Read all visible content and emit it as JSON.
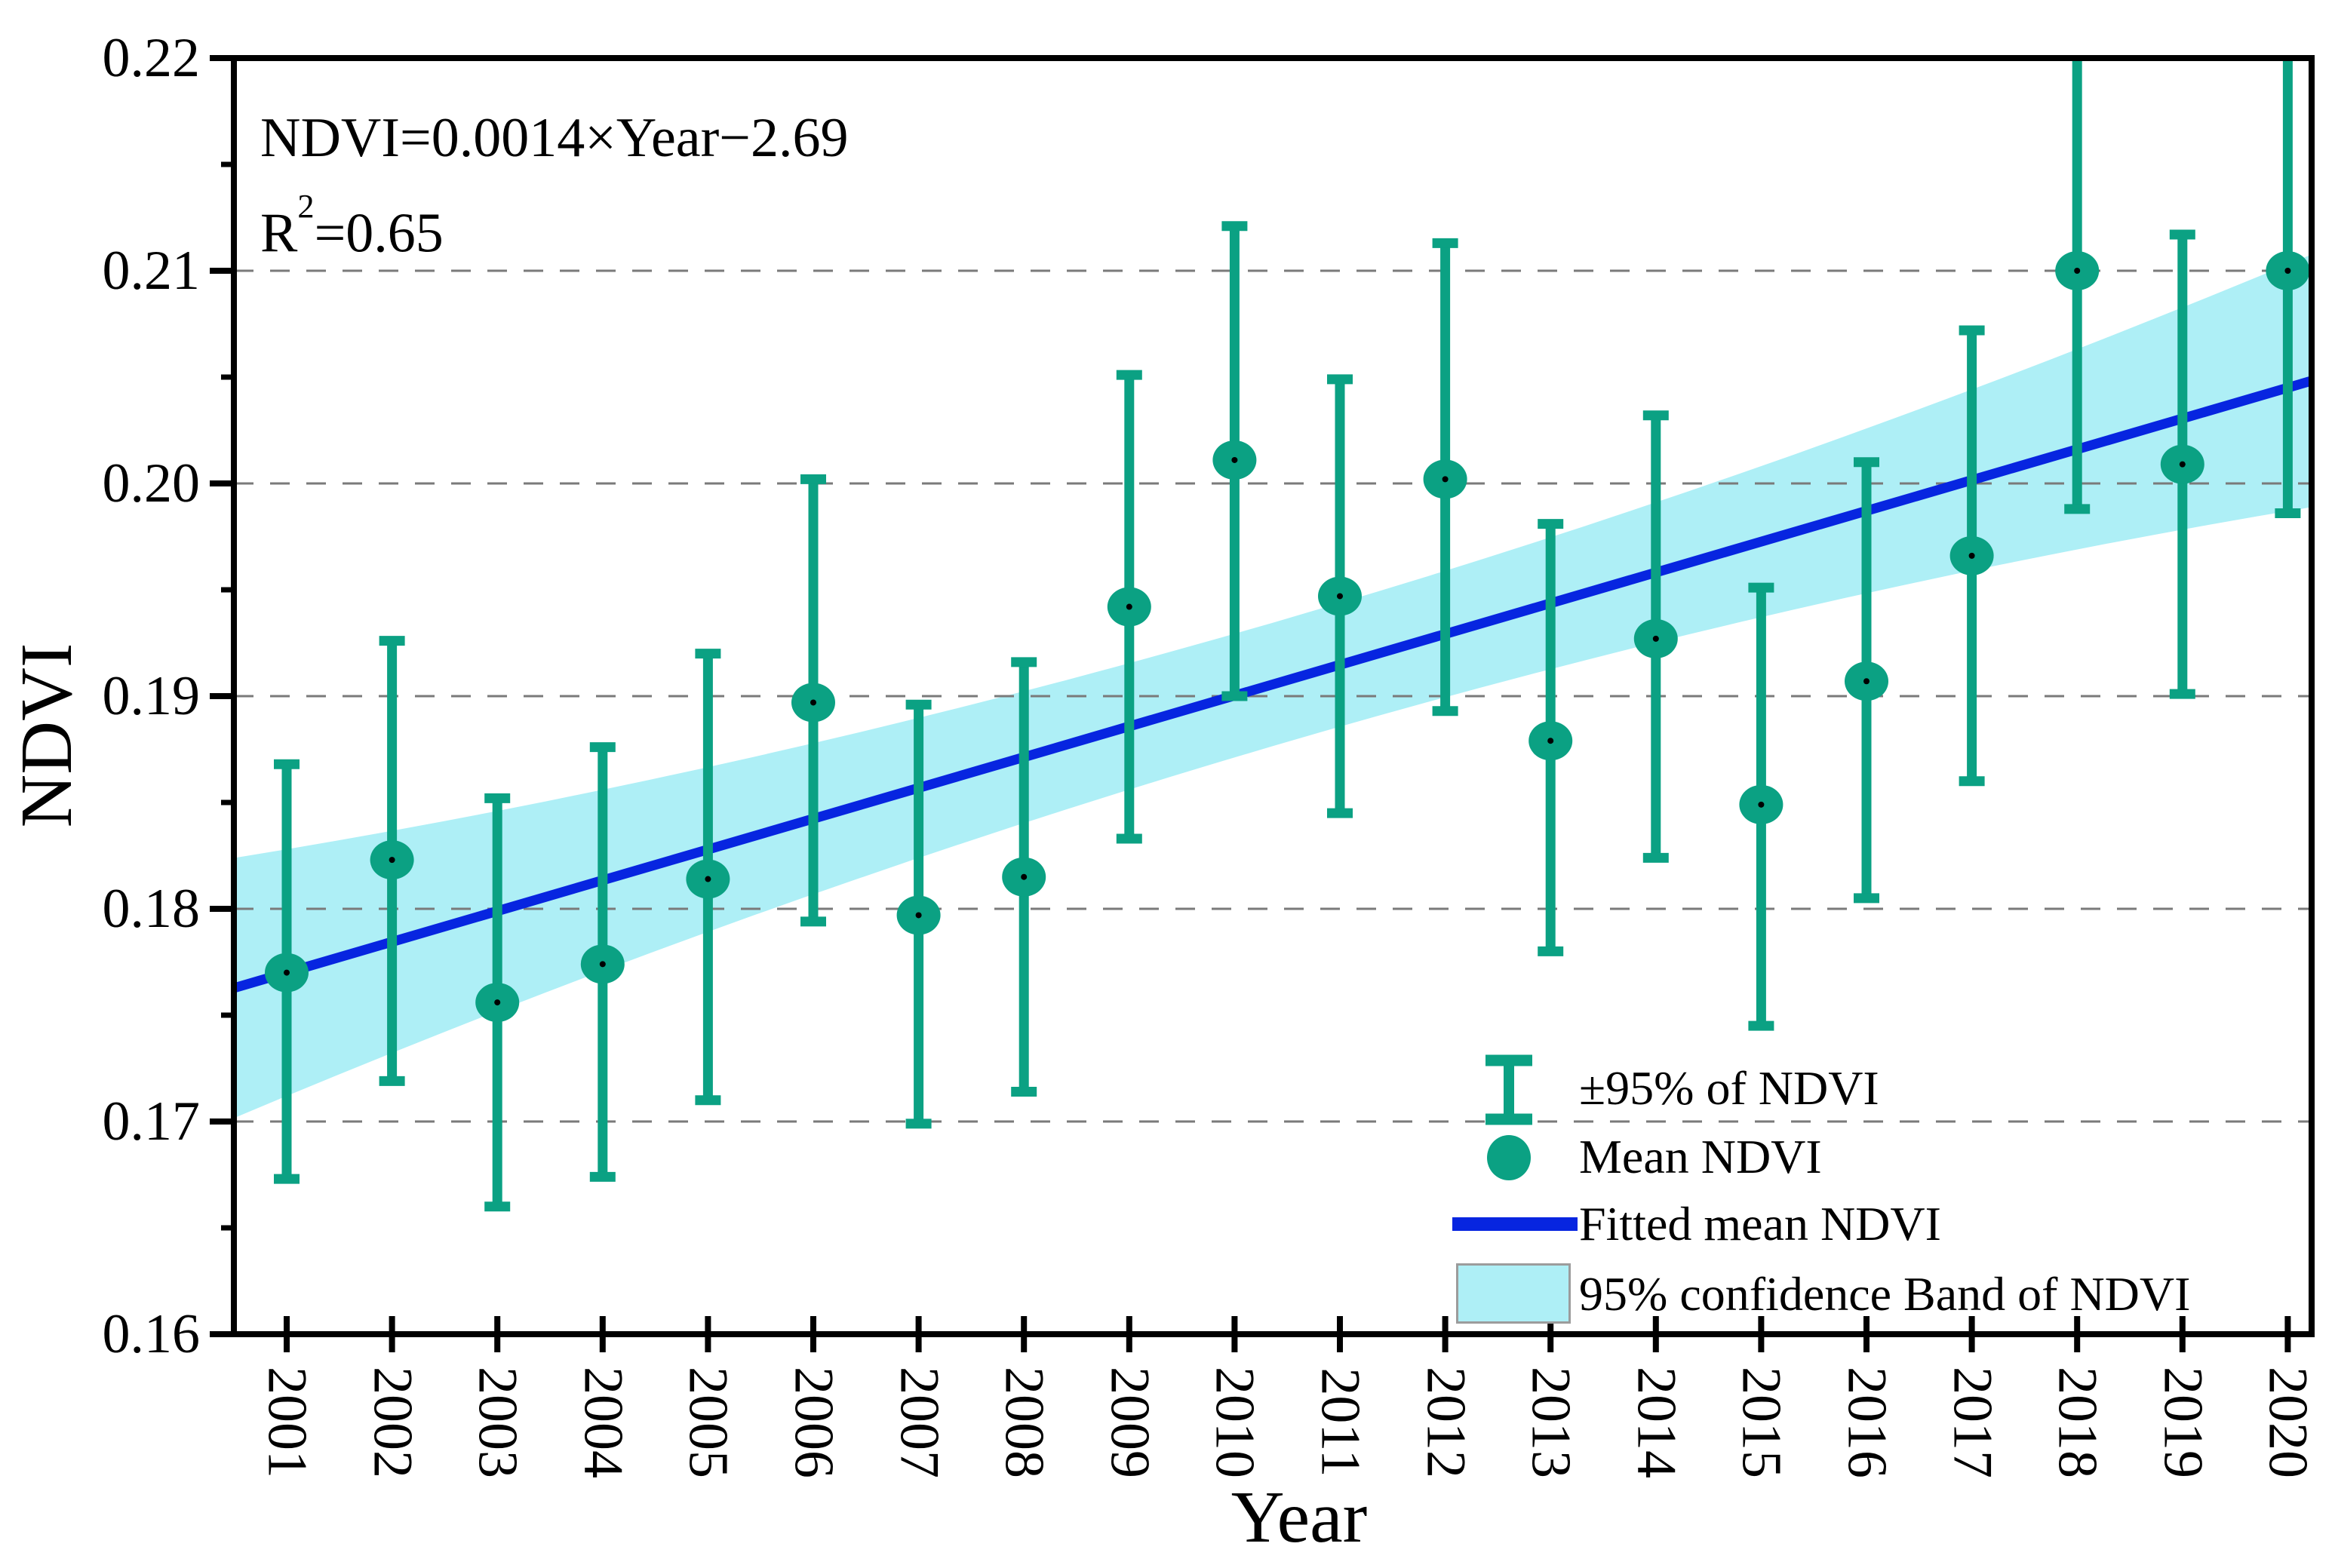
{
  "annotation": {
    "equation": "NDVI=0.0014×Year−2.69",
    "r2_base": "R",
    "r2_sup": "2",
    "r2_rest": "=0.65"
  },
  "legend": {
    "items": [
      {
        "symbol": "error-bar",
        "label": "±95% of NDVI"
      },
      {
        "symbol": "ellipse-marker",
        "label": "Mean NDVI"
      },
      {
        "symbol": "line",
        "label": "Fitted mean NDVI"
      },
      {
        "symbol": "band",
        "label": "95% confidence Band of NDVI"
      }
    ]
  },
  "colors": {
    "marker_teal": "#0ba183",
    "fit_line_blue": "#0725e0",
    "confidence_band": "#aeeff6",
    "gridline_gray": "#7a7a7a",
    "axis_black": "#000000"
  },
  "chart_data": {
    "type": "scatter",
    "title": "",
    "xlabel": "Year",
    "ylabel": "NDVI",
    "ylim": [
      0.16,
      0.22
    ],
    "yticks": [
      "0.16",
      "0.17",
      "0.18",
      "0.19",
      "0.20",
      "0.21",
      "0.22"
    ],
    "grid": "horizontal dashed at 0.17–0.21",
    "legend_position": "lower right, no frame",
    "x": [
      2001,
      2002,
      2003,
      2004,
      2005,
      2006,
      2007,
      2008,
      2009,
      2010,
      2011,
      2012,
      2013,
      2014,
      2015,
      2016,
      2017,
      2018,
      2019,
      2020
    ],
    "series": [
      {
        "name": "Mean NDVI",
        "values": [
          0.177,
          0.1823,
          0.1756,
          0.1774,
          0.1814,
          0.1897,
          0.1797,
          0.1815,
          0.1942,
          0.2011,
          0.1947,
          0.2002,
          0.1879,
          0.1927,
          0.1849,
          0.1907,
          0.1966,
          0.21,
          0.2009,
          0.21
        ]
      },
      {
        "name": "±95% lower bound",
        "values": [
          0.1673,
          0.1719,
          0.166,
          0.1674,
          0.171,
          0.1794,
          0.1699,
          0.1714,
          0.1833,
          0.19,
          0.1845,
          0.1893,
          0.178,
          0.1824,
          0.1745,
          0.1805,
          0.186,
          0.1988,
          0.1901,
          0.1986
        ]
      },
      {
        "name": "±95% upper bound",
        "values": [
          0.1868,
          0.1926,
          0.1852,
          0.1876,
          0.192,
          0.2002,
          0.1896,
          0.1916,
          0.2051,
          0.2121,
          0.2049,
          0.2113,
          0.1981,
          0.2032,
          0.1951,
          0.201,
          0.2072,
          0.22,
          0.2117,
          0.22
        ]
      }
    ],
    "upper_bound_clipped_at_top_years": [
      2018,
      2020
    ],
    "fitted_line": {
      "name": "Fitted mean NDVI",
      "equation": "NDVI=0.0014×Year−2.69",
      "r_squared": 0.65,
      "value_at_2001": 0.177,
      "value_at_2020": 0.2045
    },
    "confidence_band": {
      "name": "95% confidence Band of NDVI",
      "center_year": 2010.5,
      "half_width_at_center": 0.0029,
      "half_width_at_edges": 0.0058
    }
  }
}
